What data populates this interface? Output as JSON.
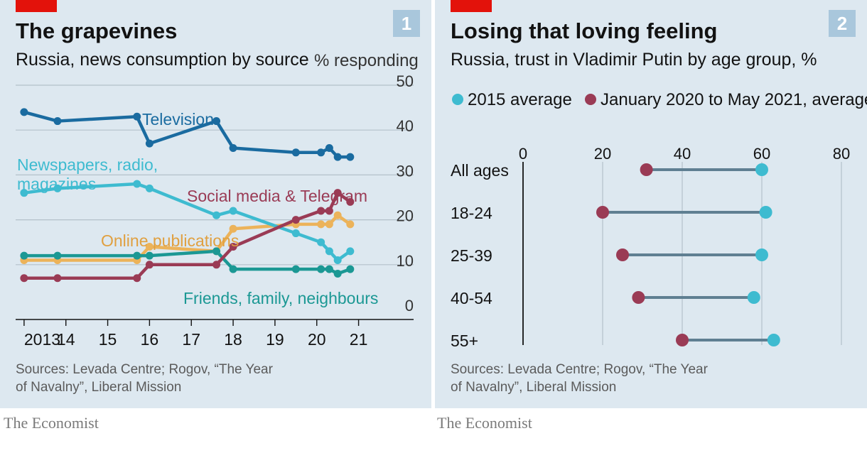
{
  "brand": "The Economist",
  "chart_data": [
    {
      "type": "line",
      "number": "1",
      "title": "The grapevines",
      "subtitle": "Russia, news consumption by source",
      "unit": "% responding",
      "ylim": [
        0,
        50
      ],
      "yticks": [
        "0",
        "10",
        "20",
        "30",
        "40",
        "50"
      ],
      "xticks": [
        "2013",
        "14",
        "15",
        "16",
        "17",
        "18",
        "19",
        "20",
        "21"
      ],
      "xtick_years": [
        2013,
        2014,
        2015,
        2016,
        2017,
        2018,
        2019,
        2020,
        2021
      ],
      "grid": true,
      "series": [
        {
          "name": "Television",
          "color": "#1a6ba0",
          "x": [
            2013.0,
            2013.8,
            2015.7,
            2016.0,
            2017.6,
            2018.0,
            2019.5,
            2020.1,
            2020.3,
            2020.5,
            2020.8
          ],
          "y": [
            44,
            42,
            43,
            37,
            42,
            36,
            35,
            35,
            36,
            34,
            34
          ]
        },
        {
          "name": "Newspapers, radio, magazines",
          "color": "#3ebbd0",
          "x": [
            2013.0,
            2013.8,
            2015.7,
            2016.0,
            2017.6,
            2018.0,
            2019.5,
            2020.1,
            2020.3,
            2020.5,
            2020.8
          ],
          "y": [
            26,
            27,
            28,
            27,
            21,
            22,
            17,
            15,
            13,
            11,
            13
          ]
        },
        {
          "name": "Social media & Telegram",
          "color": "#9a3b55",
          "x": [
            2013.0,
            2013.8,
            2015.7,
            2016.0,
            2017.6,
            2018.0,
            2019.5,
            2020.1,
            2020.3,
            2020.5,
            2020.8
          ],
          "y": [
            7,
            7,
            7,
            10,
            10,
            14,
            20,
            22,
            22,
            26,
            24
          ]
        },
        {
          "name": "Online publications",
          "color": "#ecb35a",
          "x": [
            2013.0,
            2013.8,
            2015.7,
            2016.0,
            2017.6,
            2018.0,
            2019.5,
            2020.1,
            2020.3,
            2020.5,
            2020.8
          ],
          "y": [
            11,
            11,
            11,
            14,
            13,
            18,
            19,
            19,
            19,
            21,
            19
          ]
        },
        {
          "name": "Friends, family, neighbours",
          "color": "#1b9894",
          "x": [
            2013.0,
            2013.8,
            2015.7,
            2016.0,
            2017.6,
            2018.0,
            2019.5,
            2020.1,
            2020.3,
            2020.5,
            2020.8
          ],
          "y": [
            12,
            12,
            12,
            12,
            13,
            9,
            9,
            9,
            9,
            8,
            9
          ]
        }
      ],
      "source_lines": [
        "Sources: Levada Centre; Rogov, “The Year",
        "of Navalny”, Liberal Mission"
      ]
    },
    {
      "type": "dot-plot",
      "number": "2",
      "title": "Losing that loving feeling",
      "subtitle": "Russia, trust in Vladimir Putin by age group, %",
      "xlim": [
        0,
        80
      ],
      "xticks": [
        "0",
        "20",
        "40",
        "60",
        "80"
      ],
      "grid": true,
      "legend_position": "top",
      "series": [
        {
          "name": "2015 average",
          "color": "#3ebbd0"
        },
        {
          "name": "January 2020 to May 2021, average",
          "color": "#9a3b55"
        }
      ],
      "categories": [
        "All ages",
        "18-24",
        "25-39",
        "40-54",
        "55+"
      ],
      "values_2015": [
        60,
        61,
        60,
        58,
        63
      ],
      "values_2020_2021": [
        31,
        20,
        25,
        29,
        40
      ],
      "connector_color": "#5f7f92",
      "source_lines": [
        "Sources: Levada Centre; Rogov, “The Year",
        "of Navalny”, Liberal Mission"
      ]
    }
  ]
}
